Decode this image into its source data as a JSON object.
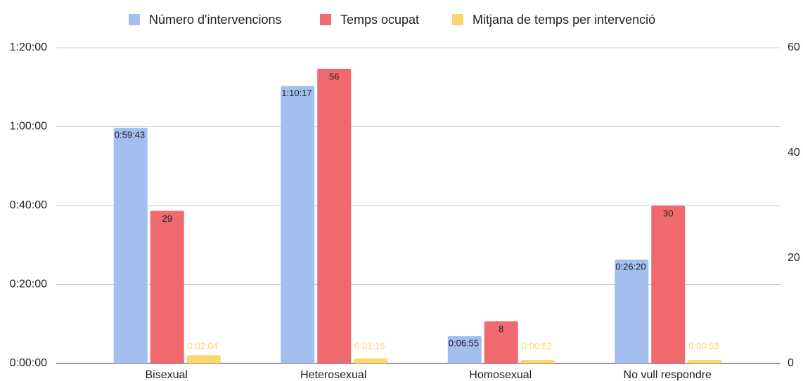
{
  "chart_data": {
    "type": "bar",
    "categories": [
      "Bisexual",
      "Heterosexual",
      "Homosexual",
      "No vull respondre"
    ],
    "series": [
      {
        "name": "Número d'intervencions",
        "color": "#a3bff0",
        "axis": "y",
        "values": [
          3583,
          4217,
          415,
          1580
        ],
        "value_labels": [
          "0:59:43",
          "1:10:17",
          "0:06:55",
          "0:26:20"
        ]
      },
      {
        "name": "Temps ocupat",
        "color": "#f0696e",
        "axis": "y2",
        "values": [
          29,
          56,
          8,
          30
        ]
      },
      {
        "name": "Mitjana de temps per intervenció",
        "color": "#fdd66b",
        "axis": "y",
        "values": [
          124,
          75,
          52,
          53
        ],
        "value_labels": [
          "0:02:04",
          "0:01:15",
          "0:00:52",
          "0:00:53"
        ]
      }
    ],
    "ylim": [
      0,
      4800
    ],
    "yticks": [
      {
        "value": 0,
        "label": "0:00:00"
      },
      {
        "value": 1200,
        "label": "0:20:00"
      },
      {
        "value": 2400,
        "label": "0:40:00"
      },
      {
        "value": 3600,
        "label": "1:00:00"
      },
      {
        "value": 4800,
        "label": "1:20:00"
      }
    ],
    "y2lim": [
      0,
      60
    ],
    "y2ticks": [
      0,
      20,
      40,
      60
    ],
    "grid": true,
    "legend": "top"
  }
}
